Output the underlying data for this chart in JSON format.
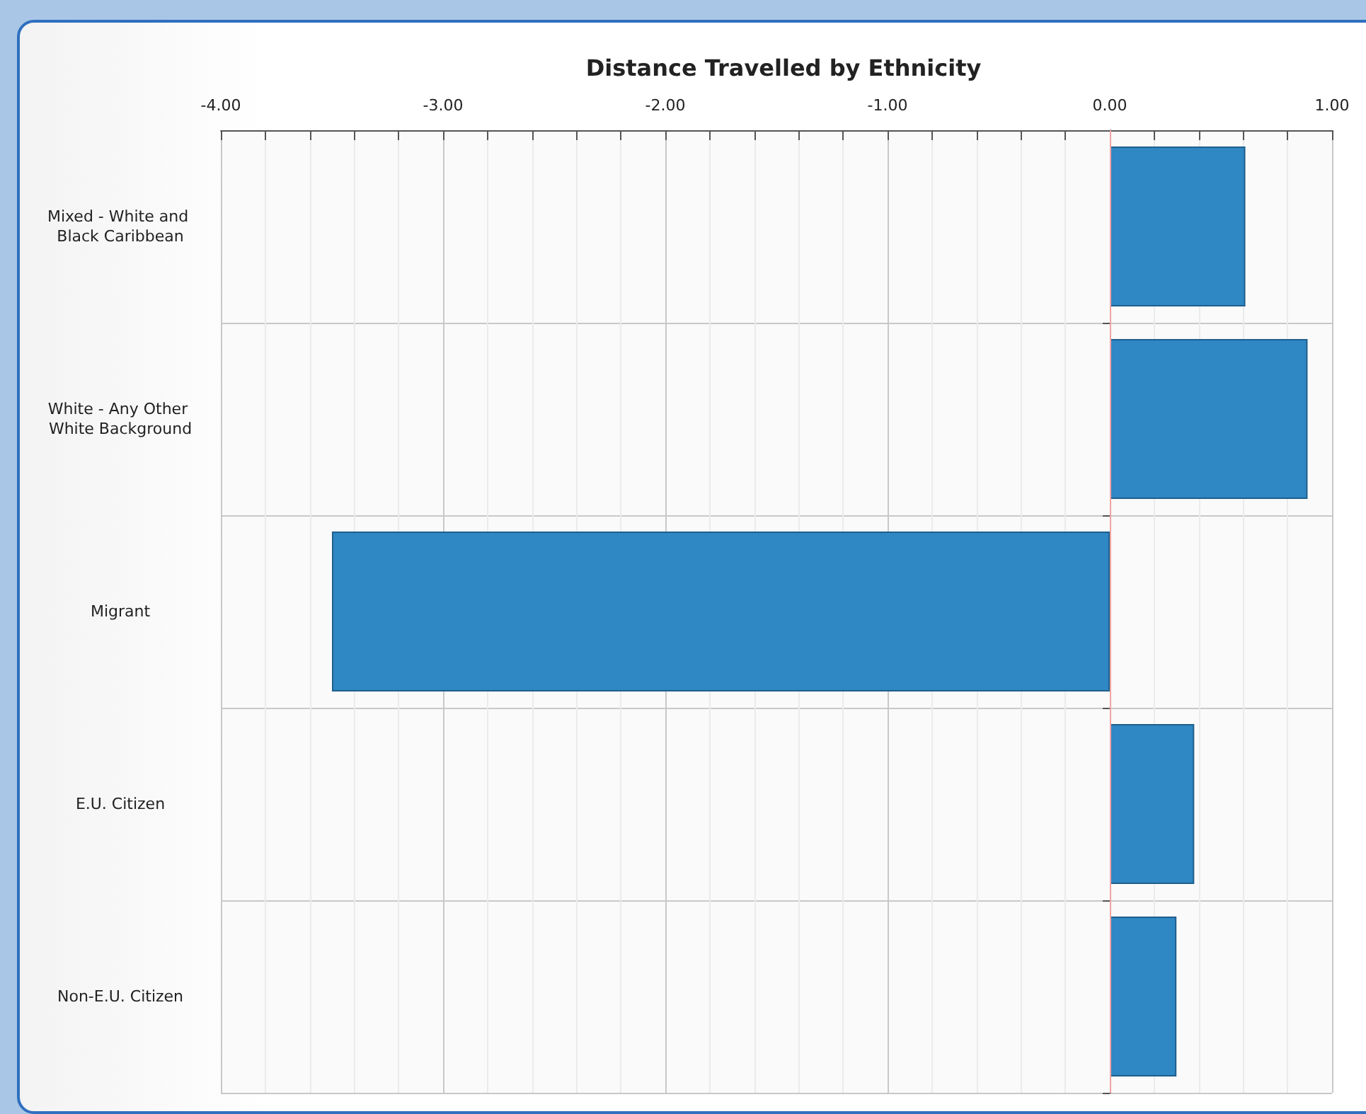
{
  "chart_data": {
    "type": "bar",
    "orientation": "horizontal",
    "title": "Distance Travelled by Ethnicity",
    "categories": [
      "Mixed - White and Black Caribbean",
      "White - Any Other White Background",
      "Migrant",
      "E.U. Citizen",
      "Non-E.U. Citizen"
    ],
    "values": [
      0.61,
      0.89,
      -3.5,
      0.38,
      0.3
    ],
    "color": "#2f87c3",
    "xlim": [
      -4,
      1
    ],
    "xticks": [
      {
        "value": -4,
        "label": "-4.00"
      },
      {
        "value": -3.8,
        "label": null
      },
      {
        "value": -3.6,
        "label": null
      },
      {
        "value": -3.4,
        "label": null
      },
      {
        "value": -3.2,
        "label": null
      },
      {
        "value": -3,
        "label": "-3.00"
      },
      {
        "value": -2.8,
        "label": null
      },
      {
        "value": -2.6,
        "label": null
      },
      {
        "value": -2.4,
        "label": null
      },
      {
        "value": -2.2,
        "label": null
      },
      {
        "value": -2,
        "label": "-2.00"
      },
      {
        "value": -1.8,
        "label": null
      },
      {
        "value": -1.6,
        "label": null
      },
      {
        "value": -1.4,
        "label": null
      },
      {
        "value": -1.2,
        "label": null
      },
      {
        "value": -1,
        "label": "-1.00"
      },
      {
        "value": -0.8,
        "label": null
      },
      {
        "value": -0.6,
        "label": null
      },
      {
        "value": -0.4,
        "label": null
      },
      {
        "value": -0.2,
        "label": null
      },
      {
        "value": 0,
        "label": "0.00"
      },
      {
        "value": 0.2,
        "label": null
      },
      {
        "value": 0.4,
        "label": null
      },
      {
        "value": 0.6,
        "label": null
      },
      {
        "value": 0.8,
        "label": null
      },
      {
        "value": 1,
        "label": "1.00"
      }
    ],
    "grid": true,
    "ref_lines": [
      {
        "axis": "x",
        "value": 0,
        "color": "#f2a3a3"
      }
    ]
  }
}
